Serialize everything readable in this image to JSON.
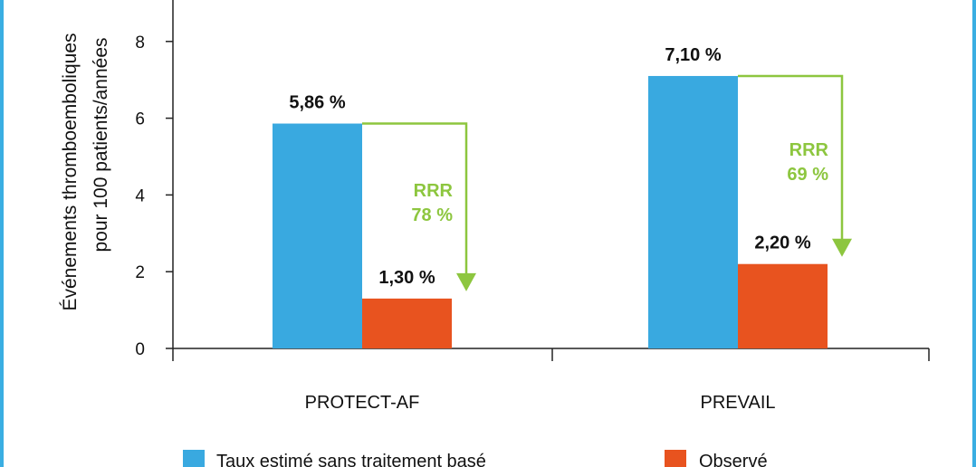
{
  "chart_data": {
    "type": "bar",
    "title": "",
    "ylabel_lines": [
      "Événements thromboemboliques",
      "pour 100 patients/années"
    ],
    "xlabel": "",
    "ylim": [
      0,
      9
    ],
    "yticks": [
      0,
      2,
      4,
      6,
      8
    ],
    "categories": [
      "PROTECT-AF",
      "PREVAIL"
    ],
    "series": [
      {
        "name": "Taux estimé sans traitement basé",
        "values": [
          5.86,
          7.1
        ],
        "labels": [
          "5,86 %",
          "7,10 %"
        ],
        "color": "#39a9e0"
      },
      {
        "name": "Observé",
        "values": [
          1.3,
          2.2
        ],
        "labels": [
          "1,30 %",
          "2,20 %"
        ],
        "color": "#e8531f"
      }
    ],
    "annotations": [
      {
        "category": "PROTECT-AF",
        "line1": "RRR",
        "line2": "78 %"
      },
      {
        "category": "PREVAIL",
        "line1": "RRR",
        "line2": "69 %"
      }
    ],
    "annotation_color": "#8dc63f",
    "grid": false,
    "legend": "bottom"
  }
}
